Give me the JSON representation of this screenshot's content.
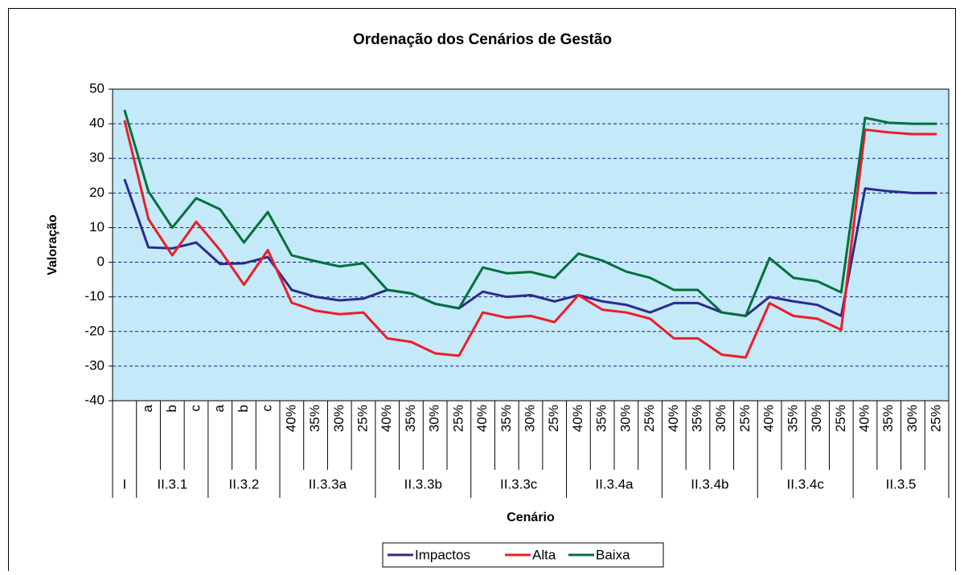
{
  "chart_data": {
    "type": "line",
    "title": "Ordenação dos Cenários de Gestão",
    "y_label": "Valoração",
    "x_label": "Cenário",
    "groups": [
      {
        "name": "I",
        "categories": [
          null
        ]
      },
      {
        "name": "II.3.1",
        "categories": [
          "a",
          "b",
          "c"
        ]
      },
      {
        "name": "II.3.2",
        "categories": [
          "a",
          "b",
          "c"
        ]
      },
      {
        "name": "II.3.3a",
        "categories": [
          "40%",
          "35%",
          "30%",
          "25%"
        ]
      },
      {
        "name": "II.3.3b",
        "categories": [
          "40%",
          "35%",
          "30%",
          "25%"
        ]
      },
      {
        "name": "II.3.3c",
        "categories": [
          "40%",
          "35%",
          "30%",
          "25%"
        ]
      },
      {
        "name": "II.3.4a",
        "categories": [
          "40%",
          "35%",
          "30%",
          "25%"
        ]
      },
      {
        "name": "II.3.4b",
        "categories": [
          "40%",
          "35%",
          "30%",
          "25%"
        ]
      },
      {
        "name": "II.3.4c",
        "categories": [
          "40%",
          "35%",
          "30%",
          "25%"
        ]
      },
      {
        "name": "II.3.5",
        "categories": [
          "40%",
          "35%",
          "30%",
          "25%"
        ]
      }
    ],
    "series": [
      {
        "name": "Impactos",
        "color": "#2b2b8c",
        "values": [
          24,
          4.3,
          4,
          5.7,
          -0.5,
          -0.3,
          1.5,
          -8,
          -10,
          -11,
          -10.5,
          -8,
          -9,
          -12,
          -13.3,
          -8.5,
          -10,
          -9.5,
          -11.3,
          -9.5,
          -11.3,
          -12.3,
          -14.5,
          -11.8,
          -11.8,
          -14.5,
          -15.5,
          -10,
          -11.3,
          -12.3,
          -15.5,
          21.3,
          20.5,
          20,
          20
        ]
      },
      {
        "name": "Alta",
        "color": "#ee1c25",
        "values": [
          41,
          12.5,
          2,
          11.7,
          3.5,
          -6.5,
          3.5,
          -11.7,
          -14,
          -15,
          -14.5,
          -22,
          -23,
          -26.3,
          -27,
          -14.5,
          -16,
          -15.5,
          -17.3,
          -9.5,
          -13.7,
          -14.5,
          -16.3,
          -22,
          -22,
          -26.7,
          -27.5,
          -11.8,
          -15.5,
          -16.3,
          -19.5,
          38.3,
          37.5,
          37,
          37
        ]
      },
      {
        "name": "Baixa",
        "color": "#00703c",
        "values": [
          44,
          20.5,
          10,
          18.5,
          15.3,
          5.7,
          14.5,
          2,
          0.3,
          -1.2,
          -0.3,
          -8,
          -9,
          -12,
          -13.3,
          -1.5,
          -3.2,
          -2.8,
          -4.5,
          2.5,
          0.5,
          -2.7,
          -4.5,
          -8,
          -8,
          -14.5,
          -15.5,
          1.2,
          -4.5,
          -5.5,
          -8.7,
          41.7,
          40.3,
          40,
          40
        ]
      }
    ],
    "ylim": [
      -40,
      50
    ],
    "yticks": [
      -40,
      -30,
      -20,
      -10,
      0,
      10,
      20,
      30,
      40,
      50
    ],
    "grid": true,
    "plot_color": "#c4e9f8",
    "legend": "bottom"
  }
}
